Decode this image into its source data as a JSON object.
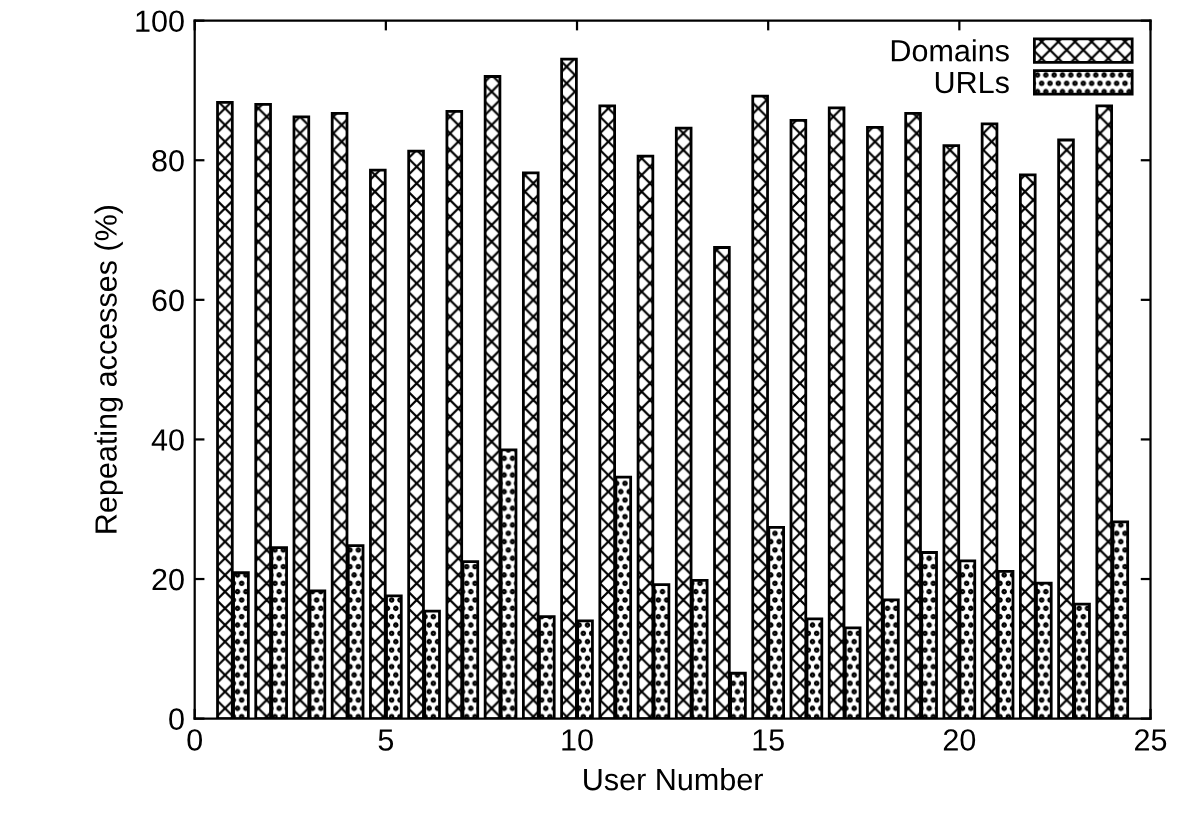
{
  "chart_data": {
    "type": "bar",
    "xlabel": "User Number",
    "ylabel": "Repeating accesses (%)",
    "x": [
      1,
      2,
      3,
      4,
      5,
      6,
      7,
      8,
      9,
      10,
      11,
      12,
      13,
      14,
      15,
      16,
      17,
      18,
      19,
      20,
      21,
      22,
      23,
      24
    ],
    "series": [
      {
        "name": "Domains",
        "color": "#000000",
        "values": [
          88.3,
          88,
          86.2,
          86.7,
          78.6,
          81.3,
          87,
          92,
          78.2,
          94.5,
          87.8,
          80.6,
          84.6,
          67.5,
          89.2,
          85.7,
          87.5,
          84.7,
          86.7,
          82.1,
          85.2,
          77.9,
          82.9,
          87.8
        ]
      },
      {
        "name": "URLs",
        "color": "#000000",
        "values": [
          20.9,
          24.5,
          18.3,
          24.8,
          17.6,
          15.4,
          22.5,
          38.5,
          14.6,
          14,
          34.6,
          19.2,
          19.8,
          6.5,
          27.4,
          14.3,
          13,
          17,
          23.8,
          22.6,
          21.1,
          19.4,
          16.4,
          28.2
        ]
      }
    ],
    "xlim": [
      0,
      25
    ],
    "xticks": [
      0,
      5,
      10,
      15,
      20,
      25
    ],
    "ylim": [
      0,
      100
    ],
    "yticks": [
      0,
      20,
      40,
      60,
      80,
      100
    ],
    "grid": false,
    "legend": "top right"
  }
}
